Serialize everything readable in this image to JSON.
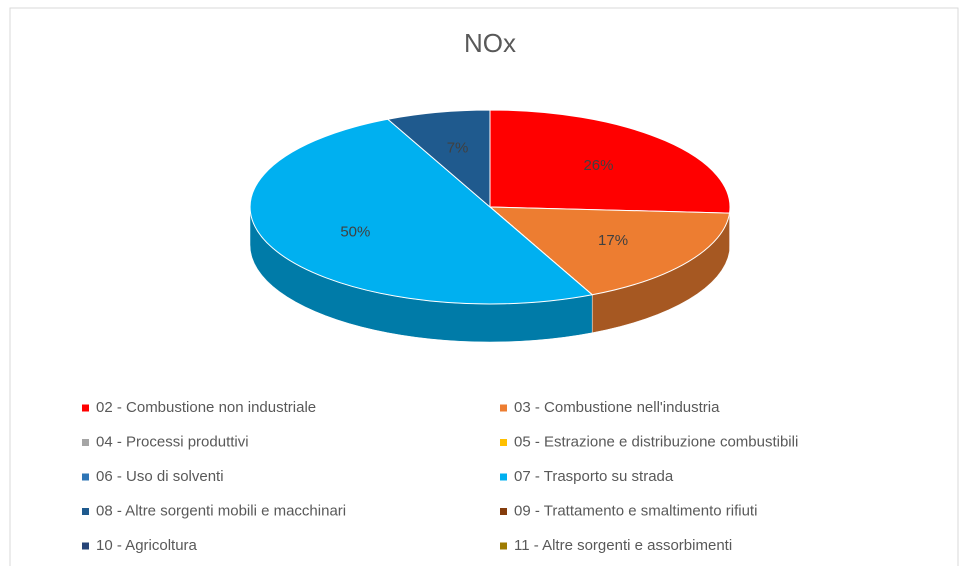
{
  "chart_data": {
    "type": "pie",
    "title": "NOx",
    "categories": [
      "02 - Combustione non industriale",
      "03 - Combustione nell'industria",
      "04 - Processi produttivi",
      "05 - Estrazione e distribuzione combustibili",
      "06 - Uso di solventi",
      "07 - Trasporto su strada",
      "08 - Altre sorgenti mobili e macchinari",
      "09 - Trattamento e smaltimento rifiuti",
      "10 - Agricoltura",
      "11 - Altre sorgenti e assorbimenti"
    ],
    "values": [
      26,
      17,
      0,
      0,
      0,
      50,
      7,
      0,
      0,
      0
    ],
    "value_labels": [
      "26%",
      "17%",
      null,
      null,
      null,
      "50%",
      "7%",
      null,
      null,
      null
    ],
    "colors": [
      "#ff0000",
      "#ed7d31",
      "#a5a5a5",
      "#ffc000",
      "#2e75b6",
      "#00b0f0",
      "#1f5a8e",
      "#843c0c",
      "#264478",
      "#9e7b00"
    ],
    "legend": "bottom"
  }
}
